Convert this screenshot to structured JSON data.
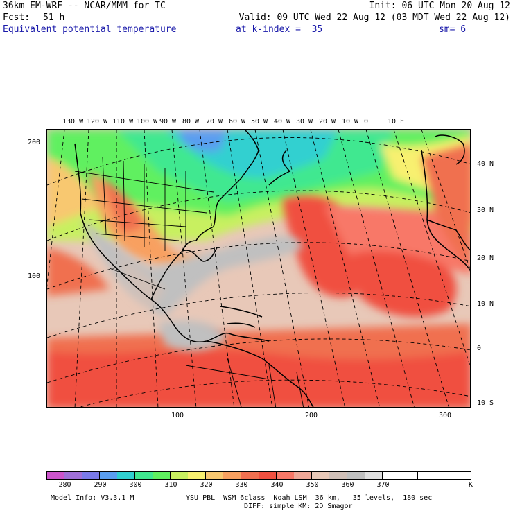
{
  "header": {
    "model_title": "36km EM-WRF -- NCAR/MMM for TC",
    "init": "Init: 06 UTC Mon 20 Aug 12",
    "fcst_label": "Fcst:",
    "fcst_value": "51 h",
    "valid": "Valid: 09 UTC Wed 22 Aug 12 (03 MDT Wed 22 Aug 12)",
    "field_name": "Equivalent potential temperature",
    "level": "at k-index =  35",
    "smoothing": "sm= 6"
  },
  "map": {
    "top_lon_labels": [
      "130 W",
      "120 W",
      "110 W",
      "100 W",
      "90 W",
      "80 W",
      "70 W",
      "60 W",
      "50 W",
      "40 W",
      "30 W",
      "20 W",
      "10 W",
      "0",
      "10 E"
    ],
    "right_lat_labels": [
      "40 N",
      "30 N",
      "20 N",
      "10 N",
      "0",
      "10 S"
    ],
    "left_grid_labels": [
      "200",
      "100"
    ],
    "bottom_grid_labels": [
      "100",
      "200",
      "300"
    ]
  },
  "colorbar": {
    "tick_labels": [
      "280",
      "290",
      "300",
      "310",
      "320",
      "330",
      "340",
      "350",
      "360",
      "370"
    ],
    "unit": "K",
    "colors": [
      "#cc55cc",
      "#a070d8",
      "#7a7ae8",
      "#5a9ef0",
      "#30d0d0",
      "#40e890",
      "#60f060",
      "#c8f060",
      "#f8f070",
      "#f8c870",
      "#f8a060",
      "#f07050",
      "#f05040",
      "#f87868",
      "#f0a898",
      "#e8c8b8",
      "#d0c0b8",
      "#c0c0c0",
      "#e0e0e0",
      "#ffffff",
      "#ffffff",
      "#ffffff",
      "#ffffff",
      "#ffffff"
    ]
  },
  "footer": {
    "model_info": "Model Info: V3.3.1 M",
    "physics_line1": "YSU PBL  WSM 6class  Noah LSM  36 km,   35 levels,  180 sec",
    "physics_line2": "DIFF: simple KM: 2D Smagor"
  }
}
